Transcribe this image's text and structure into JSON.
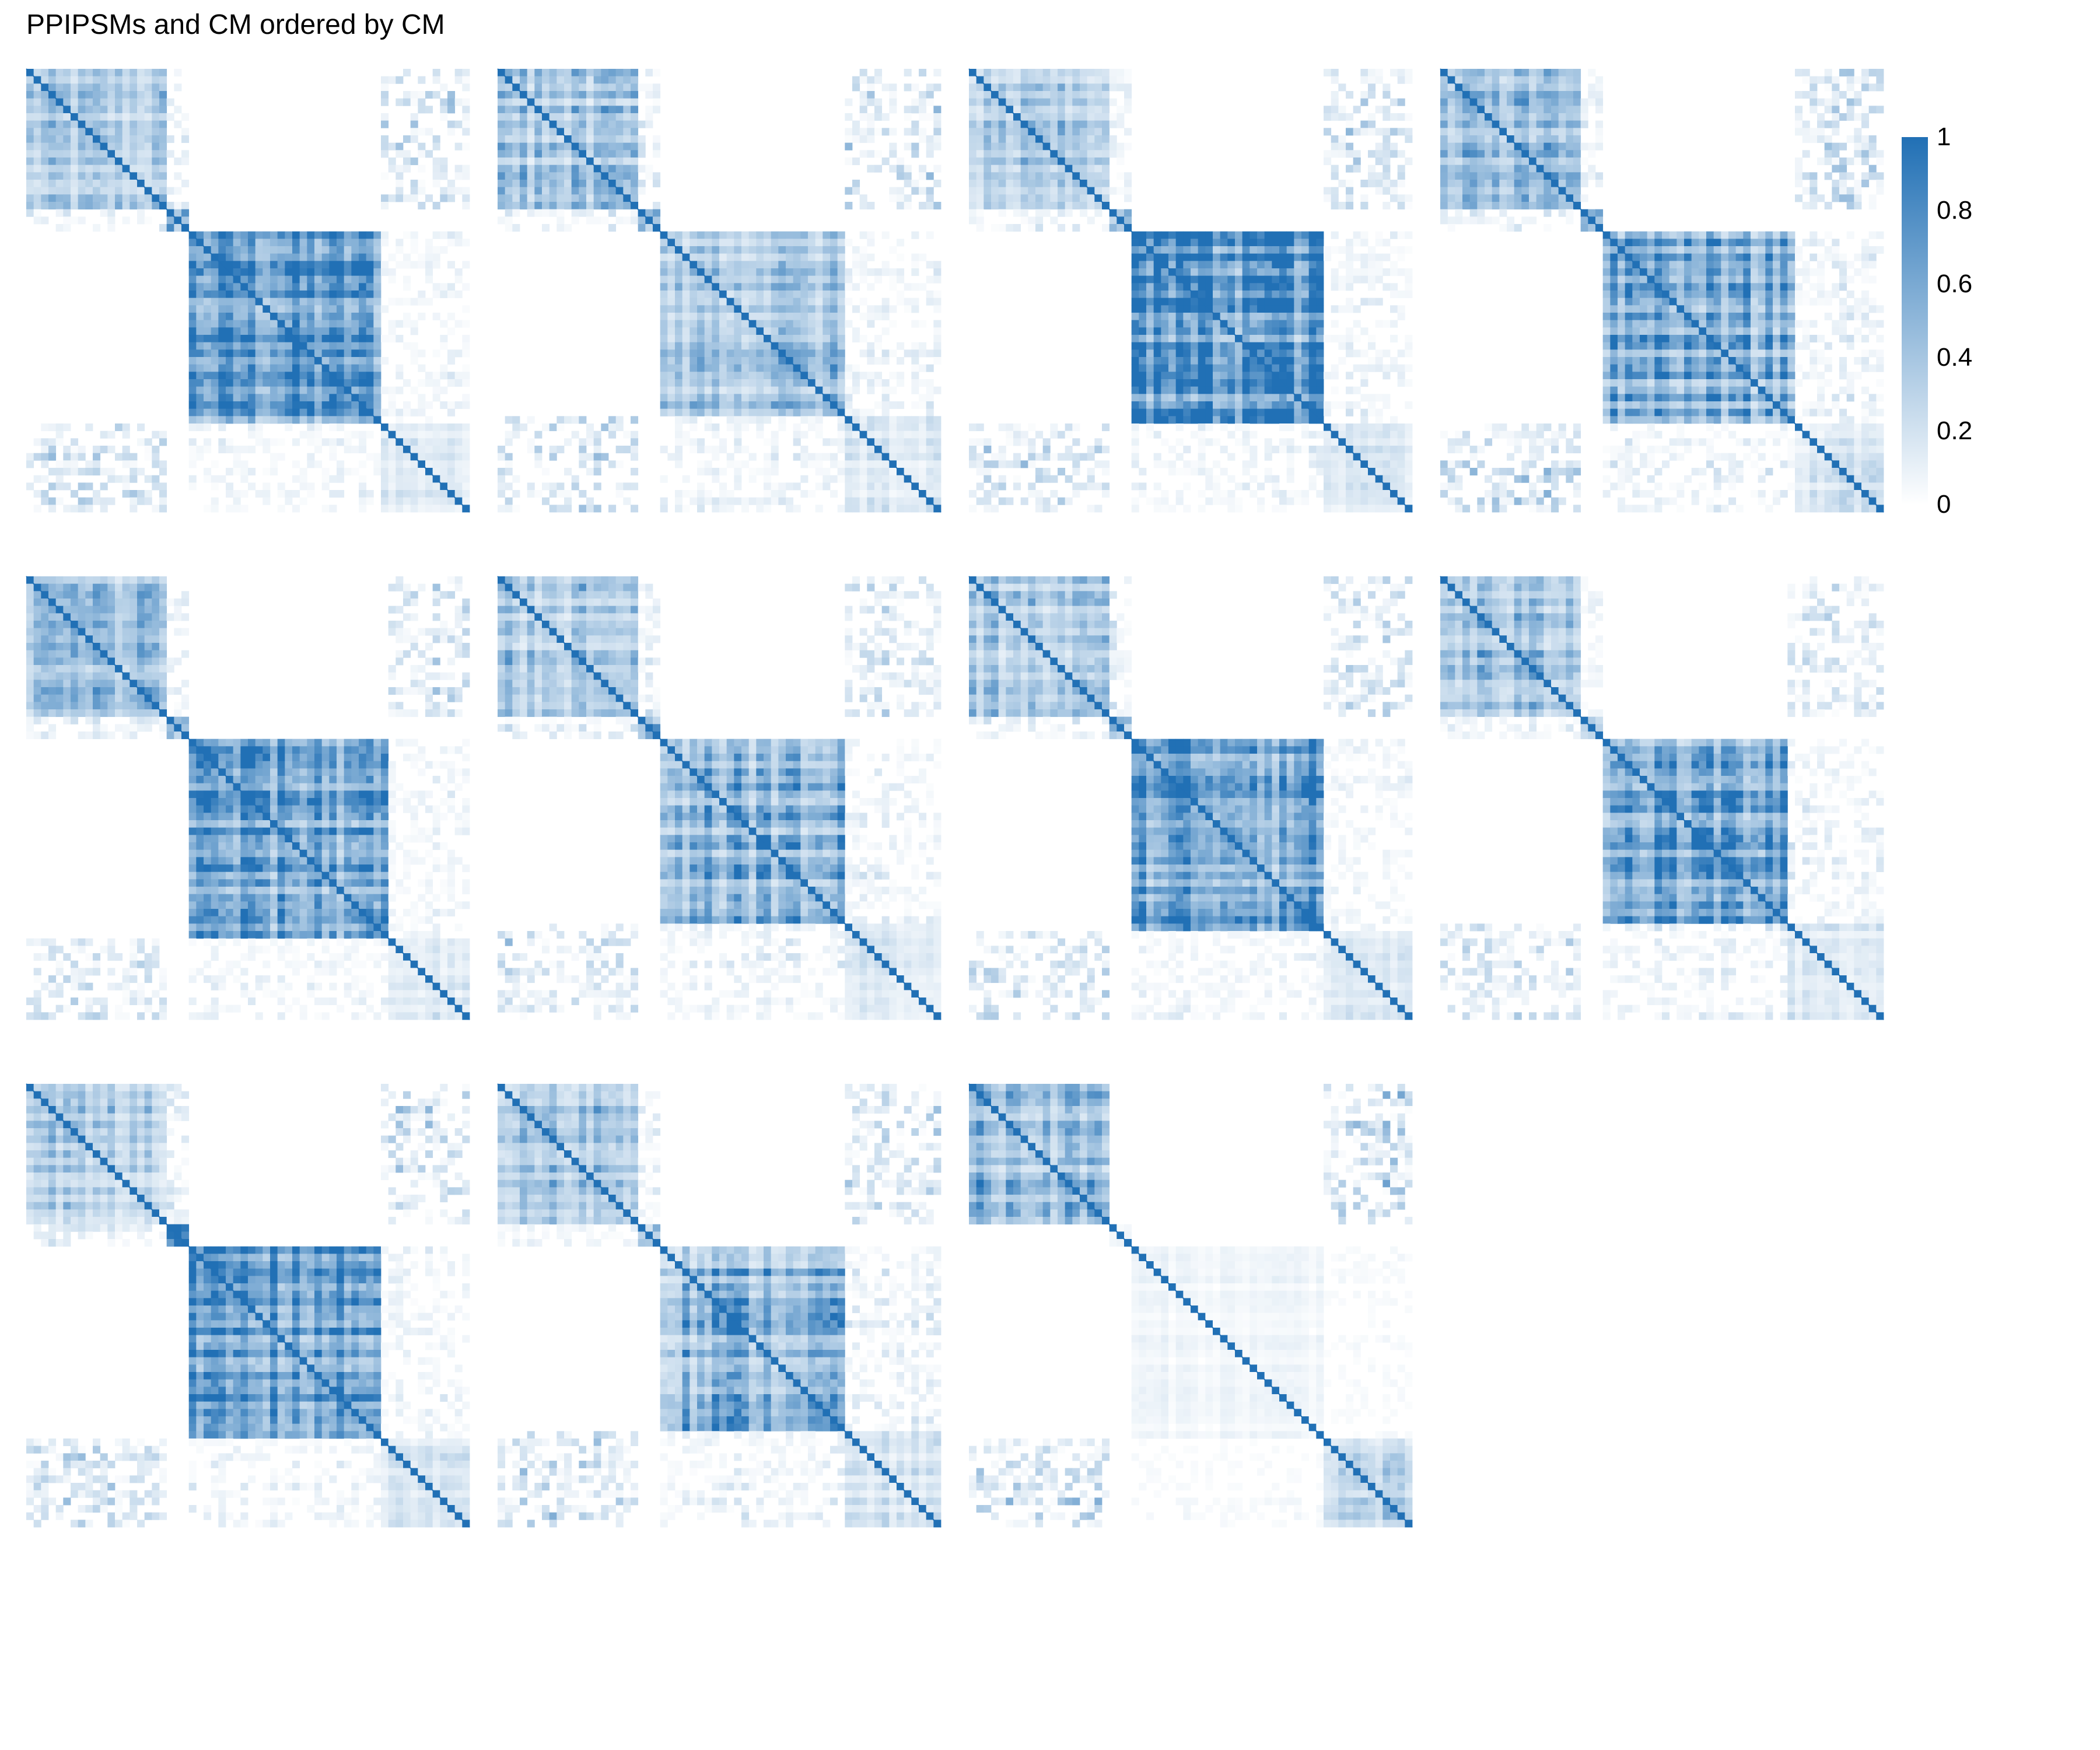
{
  "chart_data": {
    "type": "heatmap",
    "title": "PPIPSMs and CM ordered by CM",
    "panel_count": 11,
    "grid": {
      "rows": 3,
      "cols": 4
    },
    "matrix_description": "square similarity matrices; darker blue = higher value; diagonal = 1",
    "value_range": [
      0,
      1
    ],
    "colorbar": {
      "low_color": "#ffffff",
      "high_color": "#2170b5",
      "ticks": [
        "0",
        "0.2",
        "0.4",
        "0.6",
        "0.8",
        "1"
      ]
    },
    "panels": [
      {
        "blocks": [
          [
            0.0,
            0.31,
            0.3
          ],
          [
            0.31,
            0.36,
            0.55
          ],
          [
            0.36,
            0.8,
            0.65
          ],
          [
            0.8,
            1.0,
            0.15
          ]
        ],
        "cross": [
          [
            0,
            1,
            0.12
          ],
          [
            0,
            3,
            0.22
          ],
          [
            2,
            3,
            0.08
          ]
        ]
      },
      {
        "blocks": [
          [
            0.0,
            0.31,
            0.35
          ],
          [
            0.31,
            0.36,
            0.55
          ],
          [
            0.36,
            0.78,
            0.4
          ],
          [
            0.78,
            1.0,
            0.15
          ]
        ],
        "cross": [
          [
            0,
            1,
            0.12
          ],
          [
            0,
            3,
            0.22
          ],
          [
            2,
            3,
            0.1
          ]
        ]
      },
      {
        "blocks": [
          [
            0.0,
            0.31,
            0.3
          ],
          [
            0.31,
            0.36,
            0.55
          ],
          [
            0.36,
            0.8,
            0.75
          ],
          [
            0.8,
            1.0,
            0.15
          ]
        ],
        "cross": [
          [
            0,
            1,
            0.12
          ],
          [
            0,
            3,
            0.22
          ],
          [
            2,
            3,
            0.08
          ]
        ]
      },
      {
        "blocks": [
          [
            0.0,
            0.31,
            0.38
          ],
          [
            0.31,
            0.36,
            0.55
          ],
          [
            0.36,
            0.8,
            0.55
          ],
          [
            0.8,
            1.0,
            0.15
          ]
        ],
        "cross": [
          [
            0,
            1,
            0.12
          ],
          [
            0,
            3,
            0.22
          ],
          [
            2,
            3,
            0.1
          ]
        ]
      },
      {
        "blocks": [
          [
            0.0,
            0.32,
            0.4
          ],
          [
            0.32,
            0.37,
            0.55
          ],
          [
            0.37,
            0.82,
            0.6
          ],
          [
            0.82,
            1.0,
            0.15
          ]
        ],
        "cross": [
          [
            0,
            1,
            0.12
          ],
          [
            0,
            3,
            0.2
          ],
          [
            2,
            3,
            0.08
          ]
        ]
      },
      {
        "blocks": [
          [
            0.0,
            0.32,
            0.38
          ],
          [
            0.32,
            0.37,
            0.55
          ],
          [
            0.37,
            0.78,
            0.5
          ],
          [
            0.78,
            1.0,
            0.15
          ]
        ],
        "cross": [
          [
            0,
            1,
            0.12
          ],
          [
            0,
            3,
            0.2
          ],
          [
            2,
            3,
            0.1
          ]
        ]
      },
      {
        "blocks": [
          [
            0.0,
            0.32,
            0.32
          ],
          [
            0.32,
            0.37,
            0.55
          ],
          [
            0.37,
            0.8,
            0.7
          ],
          [
            0.8,
            1.0,
            0.15
          ]
        ],
        "cross": [
          [
            0,
            1,
            0.12
          ],
          [
            0,
            3,
            0.2
          ],
          [
            2,
            3,
            0.08
          ]
        ]
      },
      {
        "blocks": [
          [
            0.0,
            0.32,
            0.38
          ],
          [
            0.32,
            0.37,
            0.55
          ],
          [
            0.37,
            0.78,
            0.6
          ],
          [
            0.78,
            1.0,
            0.15
          ]
        ],
        "cross": [
          [
            0,
            1,
            0.12
          ],
          [
            0,
            3,
            0.2
          ],
          [
            2,
            3,
            0.1
          ]
        ]
      },
      {
        "blocks": [
          [
            0.0,
            0.31,
            0.34
          ],
          [
            0.31,
            0.36,
            0.55
          ],
          [
            0.36,
            0.8,
            0.65
          ],
          [
            0.8,
            1.0,
            0.15
          ]
        ],
        "cross": [
          [
            0,
            1,
            0.12
          ],
          [
            0,
            3,
            0.22
          ],
          [
            2,
            3,
            0.08
          ]
        ]
      },
      {
        "blocks": [
          [
            0.0,
            0.31,
            0.38
          ],
          [
            0.31,
            0.36,
            0.55
          ],
          [
            0.36,
            0.78,
            0.5
          ],
          [
            0.78,
            1.0,
            0.15
          ]
        ],
        "cross": [
          [
            0,
            1,
            0.12
          ],
          [
            0,
            3,
            0.22
          ],
          [
            2,
            3,
            0.1
          ]
        ]
      },
      {
        "blocks": [
          [
            0.0,
            0.32,
            0.45
          ],
          [
            0.32,
            0.37,
            0.06
          ],
          [
            0.37,
            0.8,
            0.06
          ],
          [
            0.8,
            1.0,
            0.25
          ]
        ],
        "cross": [
          [
            0,
            3,
            0.25
          ],
          [
            2,
            3,
            0.03
          ]
        ]
      }
    ]
  }
}
